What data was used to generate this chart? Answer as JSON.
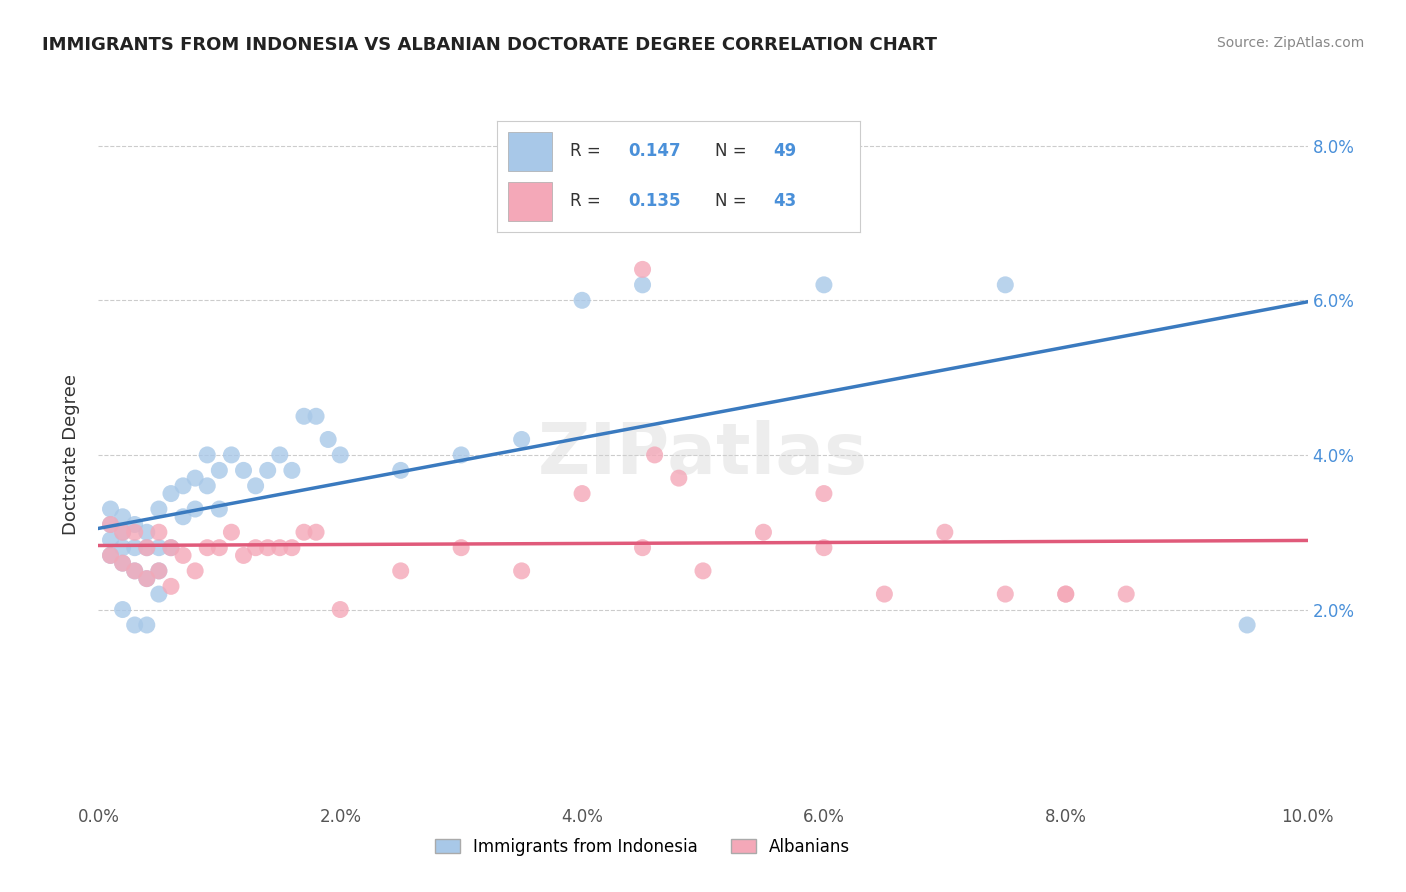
{
  "title": "IMMIGRANTS FROM INDONESIA VS ALBANIAN DOCTORATE DEGREE CORRELATION CHART",
  "source": "Source: ZipAtlas.com",
  "ylabel": "Doctorate Degree",
  "blue_R": 0.147,
  "blue_N": 49,
  "pink_R": 0.135,
  "pink_N": 43,
  "blue_color": "#a8c8e8",
  "pink_color": "#f4a8b8",
  "blue_line_color": "#3a7abf",
  "pink_line_color": "#e05a7a",
  "legend_blue_label": "Immigrants from Indonesia",
  "legend_pink_label": "Albanians",
  "watermark": "ZIPatlas",
  "xlim": [
    0.0,
    0.1
  ],
  "ylim": [
    -0.005,
    0.085
  ],
  "blue_x": [
    0.001,
    0.001,
    0.001,
    0.002,
    0.002,
    0.002,
    0.002,
    0.003,
    0.003,
    0.003,
    0.004,
    0.004,
    0.004,
    0.005,
    0.005,
    0.005,
    0.006,
    0.006,
    0.007,
    0.007,
    0.008,
    0.008,
    0.009,
    0.009,
    0.01,
    0.01,
    0.011,
    0.012,
    0.013,
    0.014,
    0.015,
    0.016,
    0.017,
    0.018,
    0.019,
    0.02,
    0.025,
    0.03,
    0.035,
    0.04,
    0.045,
    0.06,
    0.075,
    0.095,
    0.001,
    0.002,
    0.003,
    0.004,
    0.005
  ],
  "blue_y": [
    0.033,
    0.031,
    0.029,
    0.032,
    0.03,
    0.028,
    0.026,
    0.031,
    0.028,
    0.025,
    0.03,
    0.028,
    0.024,
    0.033,
    0.028,
    0.025,
    0.035,
    0.028,
    0.036,
    0.032,
    0.037,
    0.033,
    0.04,
    0.036,
    0.038,
    0.033,
    0.04,
    0.038,
    0.036,
    0.038,
    0.04,
    0.038,
    0.045,
    0.045,
    0.042,
    0.04,
    0.038,
    0.04,
    0.042,
    0.06,
    0.062,
    0.062,
    0.062,
    0.018,
    0.027,
    0.02,
    0.018,
    0.018,
    0.022
  ],
  "pink_x": [
    0.001,
    0.001,
    0.002,
    0.002,
    0.003,
    0.003,
    0.004,
    0.004,
    0.005,
    0.005,
    0.006,
    0.006,
    0.007,
    0.008,
    0.009,
    0.01,
    0.011,
    0.012,
    0.013,
    0.014,
    0.015,
    0.016,
    0.017,
    0.018,
    0.02,
    0.025,
    0.03,
    0.035,
    0.04,
    0.045,
    0.05,
    0.055,
    0.06,
    0.065,
    0.07,
    0.075,
    0.08,
    0.085,
    0.045,
    0.046,
    0.048,
    0.06,
    0.08
  ],
  "pink_y": [
    0.031,
    0.027,
    0.03,
    0.026,
    0.03,
    0.025,
    0.028,
    0.024,
    0.03,
    0.025,
    0.028,
    0.023,
    0.027,
    0.025,
    0.028,
    0.028,
    0.03,
    0.027,
    0.028,
    0.028,
    0.028,
    0.028,
    0.03,
    0.03,
    0.02,
    0.025,
    0.028,
    0.025,
    0.035,
    0.028,
    0.025,
    0.03,
    0.028,
    0.022,
    0.03,
    0.022,
    0.022,
    0.022,
    0.064,
    0.04,
    0.037,
    0.035,
    0.022
  ]
}
